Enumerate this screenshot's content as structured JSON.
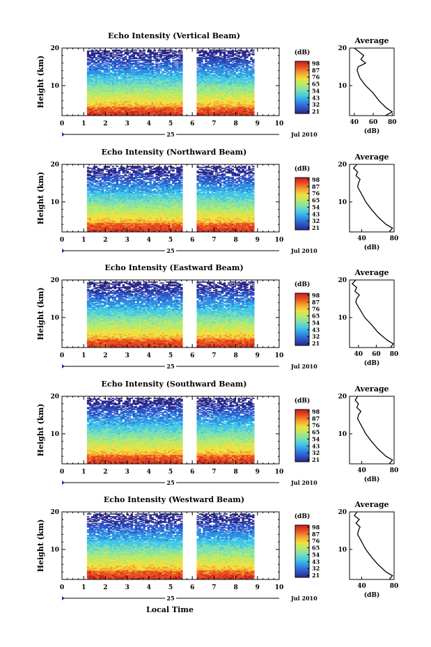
{
  "chart_data": [
    {
      "type": "heatmap",
      "title": "Echo Intensity (Vertical Beam)",
      "ylabel": "Height (km)",
      "xlim": [
        0,
        10
      ],
      "ylim": [
        2,
        20
      ],
      "x_ticks": [
        "0",
        "1",
        "2",
        "3",
        "4",
        "5",
        "6",
        "7",
        "8",
        "9",
        "10"
      ],
      "y_ticks": [
        "20",
        "10"
      ],
      "date_day": "25",
      "date_month": "Jul 2010",
      "colorbar": {
        "unit": "(dB)",
        "ticks": [
          "98",
          "87",
          "76",
          "65",
          "54",
          "43",
          "32",
          "21"
        ]
      },
      "data_segments": [
        [
          1.15,
          5.55
        ],
        [
          6.2,
          8.85
        ]
      ],
      "average_profile": {
        "title": "Average",
        "xlabel": "(dB)",
        "x_ticks": [
          "40",
          "60",
          "80"
        ],
        "xlim": [
          35,
          82
        ],
        "points": [
          [
            73,
            2
          ],
          [
            80,
            3
          ],
          [
            74,
            4
          ],
          [
            66,
            6
          ],
          [
            60,
            8
          ],
          [
            52,
            10
          ],
          [
            46,
            12
          ],
          [
            43,
            14
          ],
          [
            44,
            15
          ],
          [
            52,
            16
          ],
          [
            47,
            17
          ],
          [
            50,
            18
          ],
          [
            45,
            19
          ],
          [
            40,
            20
          ]
        ]
      }
    },
    {
      "type": "heatmap",
      "title": "Echo Intensity (Northward Beam)",
      "ylabel": "Height (km)",
      "xlim": [
        0,
        10
      ],
      "ylim": [
        2,
        20
      ],
      "x_ticks": [
        "0",
        "1",
        "2",
        "3",
        "4",
        "5",
        "6",
        "7",
        "8",
        "9",
        "10"
      ],
      "y_ticks": [
        "20",
        "10"
      ],
      "date_day": "25",
      "date_month": "Jul 2010",
      "colorbar": {
        "unit": "(dB)",
        "ticks": [
          "98",
          "87",
          "76",
          "65",
          "54",
          "43",
          "32",
          "21"
        ]
      },
      "data_segments": [
        [
          1.15,
          5.55
        ],
        [
          6.2,
          8.85
        ]
      ],
      "average_profile": {
        "title": "Average",
        "xlabel": "(dB)",
        "x_ticks": [
          "40",
          "80"
        ],
        "xlim": [
          25,
          80
        ],
        "points": [
          [
            74,
            2
          ],
          [
            78,
            3
          ],
          [
            70,
            4
          ],
          [
            60,
            6
          ],
          [
            52,
            8
          ],
          [
            45,
            10
          ],
          [
            40,
            12
          ],
          [
            35,
            14
          ],
          [
            36,
            15
          ],
          [
            38,
            16
          ],
          [
            33,
            17
          ],
          [
            35,
            18
          ],
          [
            30,
            19
          ],
          [
            34,
            20
          ]
        ]
      }
    },
    {
      "type": "heatmap",
      "title": "Echo Intensity (Eastward Beam)",
      "ylabel": "Height (km)",
      "xlim": [
        0,
        10
      ],
      "ylim": [
        2,
        20
      ],
      "x_ticks": [
        "0",
        "1",
        "2",
        "3",
        "4",
        "5",
        "6",
        "7",
        "8",
        "9",
        "10"
      ],
      "y_ticks": [
        "20",
        "10"
      ],
      "date_day": "25",
      "date_month": "Jul 2010",
      "colorbar": {
        "unit": "(dB)",
        "ticks": [
          "98",
          "87",
          "76",
          "65",
          "54",
          "43",
          "32",
          "21"
        ]
      },
      "data_segments": [
        [
          1.15,
          5.55
        ],
        [
          6.2,
          8.85
        ]
      ],
      "average_profile": {
        "title": "Average",
        "xlabel": "(dB)",
        "x_ticks": [
          "40",
          "60",
          "80"
        ],
        "xlim": [
          30,
          80
        ],
        "points": [
          [
            76,
            2
          ],
          [
            79,
            3
          ],
          [
            72,
            4
          ],
          [
            62,
            6
          ],
          [
            55,
            8
          ],
          [
            47,
            10
          ],
          [
            42,
            12
          ],
          [
            37,
            14
          ],
          [
            38,
            15
          ],
          [
            41,
            16
          ],
          [
            36,
            17
          ],
          [
            38,
            18
          ],
          [
            33,
            19
          ],
          [
            37,
            20
          ]
        ]
      }
    },
    {
      "type": "heatmap",
      "title": "Echo Intensity (Southward Beam)",
      "ylabel": "Height (km)",
      "xlim": [
        0,
        10
      ],
      "ylim": [
        2,
        20
      ],
      "x_ticks": [
        "0",
        "1",
        "2",
        "3",
        "4",
        "5",
        "6",
        "7",
        "8",
        "9",
        "10"
      ],
      "y_ticks": [
        "20",
        "10"
      ],
      "date_day": "25",
      "date_month": "Jul 2010",
      "colorbar": {
        "unit": "(dB)",
        "ticks": [
          "98",
          "87",
          "76",
          "65",
          "54",
          "43",
          "32",
          "21"
        ]
      },
      "data_segments": [
        [
          1.15,
          5.55
        ],
        [
          6.2,
          8.85
        ]
      ],
      "average_profile": {
        "title": "Average",
        "xlabel": "(dB)",
        "x_ticks": [
          "40",
          "80"
        ],
        "xlim": [
          25,
          80
        ],
        "points": [
          [
            74,
            2
          ],
          [
            78,
            3
          ],
          [
            70,
            4
          ],
          [
            60,
            6
          ],
          [
            52,
            8
          ],
          [
            45,
            10
          ],
          [
            40,
            12
          ],
          [
            35,
            14
          ],
          [
            36,
            15
          ],
          [
            39,
            16
          ],
          [
            34,
            17
          ],
          [
            36,
            18
          ],
          [
            32,
            19
          ],
          [
            35,
            20
          ]
        ]
      }
    },
    {
      "type": "heatmap",
      "title": "Echo Intensity (Westward Beam)",
      "ylabel": "Height (km)",
      "xlim": [
        0,
        10
      ],
      "ylim": [
        2,
        20
      ],
      "x_ticks": [
        "0",
        "1",
        "2",
        "3",
        "4",
        "5",
        "6",
        "7",
        "8",
        "9",
        "10"
      ],
      "y_ticks": [
        "20",
        "10"
      ],
      "date_day": "25",
      "date_month": "Jul 2010",
      "colorbar": {
        "unit": "(dB)",
        "ticks": [
          "98",
          "87",
          "76",
          "65",
          "54",
          "43",
          "32",
          "21"
        ]
      },
      "data_segments": [
        [
          1.15,
          5.55
        ],
        [
          6.2,
          8.85
        ]
      ],
      "average_profile": {
        "title": "Average",
        "xlabel": "(dB)",
        "x_ticks": [
          "40",
          "80"
        ],
        "xlim": [
          25,
          80
        ],
        "points": [
          [
            74,
            2
          ],
          [
            78,
            3
          ],
          [
            70,
            4
          ],
          [
            60,
            6
          ],
          [
            52,
            8
          ],
          [
            45,
            10
          ],
          [
            40,
            12
          ],
          [
            35,
            14
          ],
          [
            36,
            15
          ],
          [
            38,
            16
          ],
          [
            33,
            17
          ],
          [
            37,
            18
          ],
          [
            31,
            19
          ],
          [
            34,
            20
          ]
        ]
      }
    }
  ],
  "xlabel": "Local Time",
  "colors": {
    "scale": [
      "#2a2a8c",
      "#2f55c8",
      "#2f8fe0",
      "#43c6e8",
      "#7ee0b0",
      "#b4ea6e",
      "#f0e040",
      "#f5a030",
      "#e85020",
      "#c81e1e"
    ]
  }
}
